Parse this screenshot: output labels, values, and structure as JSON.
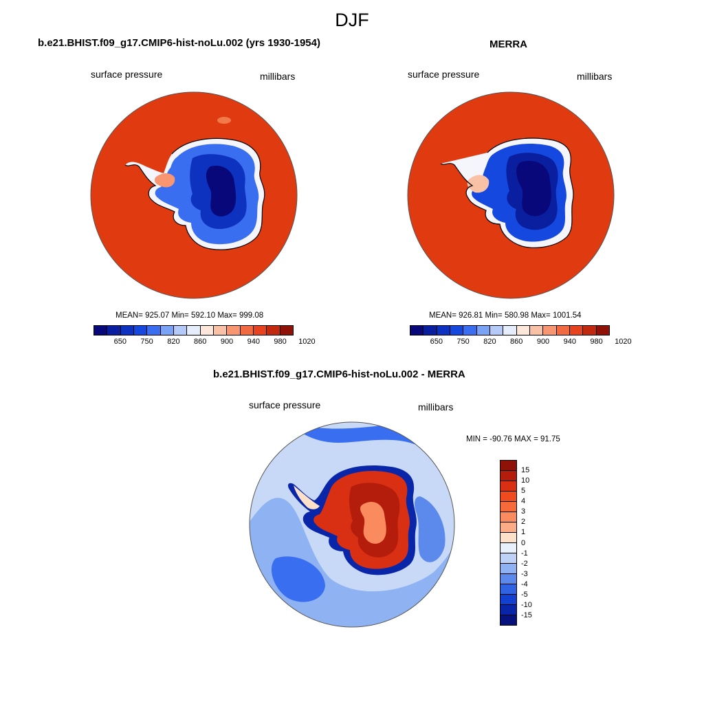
{
  "figure": {
    "title": "DJF"
  },
  "panel_model": {
    "title": "b.e21.BHIST.f09_g17.CMIP6-hist-noLu.002 (yrs 1930-1954)",
    "variable_label": "surface pressure",
    "units_label": "millibars",
    "stats": "MEAN= 925.07  Min= 592.10  Max= 999.08"
  },
  "panel_obs": {
    "title": "MERRA",
    "variable_label": "surface pressure",
    "units_label": "millibars",
    "stats": "MEAN= 926.81  Min= 580.98  Max= 1001.54"
  },
  "panel_diff": {
    "title": "b.e21.BHIST.f09_g17.CMIP6-hist-noLu.002 - MERRA",
    "variable_label": "surface pressure",
    "units_label": "millibars",
    "stats": "MIN = -90.76 MAX =  91.75"
  },
  "abs_colorbar": {
    "colors": [
      "#08087a",
      "#0a1ea0",
      "#0d32c0",
      "#1448de",
      "#3a6ef0",
      "#7aa2f5",
      "#b4caf8",
      "#e6eefc",
      "#fde6da",
      "#f9c2a6",
      "#f79670",
      "#f26a42",
      "#e6431e",
      "#c22a10",
      "#8e1208"
    ],
    "tick_labels": [
      "650",
      "750",
      "820",
      "860",
      "900",
      "940",
      "980",
      "1020"
    ],
    "tick_after_box": [
      1,
      3,
      5,
      7,
      9,
      11,
      13,
      15
    ]
  },
  "diff_colorbar": {
    "colors_top_to_bottom": [
      "#8e1208",
      "#b41d0c",
      "#d93014",
      "#f04a1e",
      "#f76a3a",
      "#f98b5e",
      "#fbab86",
      "#fde0c8",
      "#e8f0fb",
      "#bdd2f6",
      "#8fb3f2",
      "#5b8aec",
      "#2f63e2",
      "#1240d0",
      "#0a26a8",
      "#06127e"
    ],
    "tick_labels": [
      "15",
      "10",
      "5",
      "4",
      "3",
      "2",
      "1",
      "0",
      "-1",
      "-2",
      "-3",
      "-4",
      "-5",
      "-10",
      "-15"
    ]
  },
  "map_colors": {
    "ocean_high": "#e03a10",
    "coastline": "#000000",
    "diff_background": "#c8d9f7"
  }
}
